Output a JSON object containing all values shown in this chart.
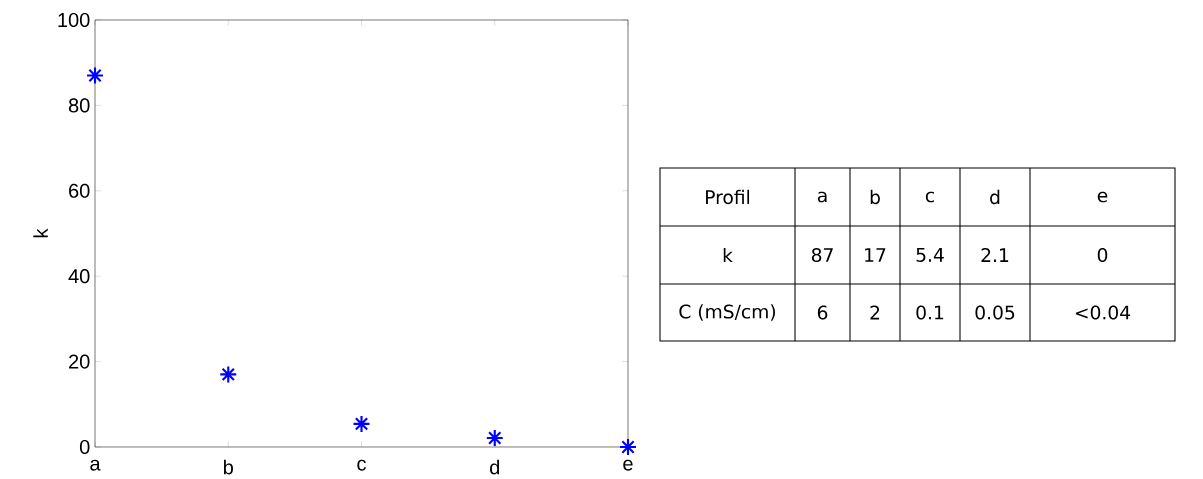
{
  "chart_data": {
    "type": "scatter",
    "ylabel": "k",
    "categories": [
      "a",
      "b",
      "c",
      "d",
      "e"
    ],
    "values": [
      87,
      17,
      5.4,
      2.1,
      0
    ],
    "color": "#0000ff",
    "marker": "cross",
    "ylim": [
      0,
      100
    ],
    "yticks": [
      0,
      20,
      40,
      60,
      80,
      100
    ],
    "annotations": [
      "Profil",
      "87",
      "17",
      "5.4",
      "2.1",
      "0",
      "C (mS/cm)",
      "6",
      "2",
      "0.1",
      "0.05",
      "<0.04"
    ]
  }
}
